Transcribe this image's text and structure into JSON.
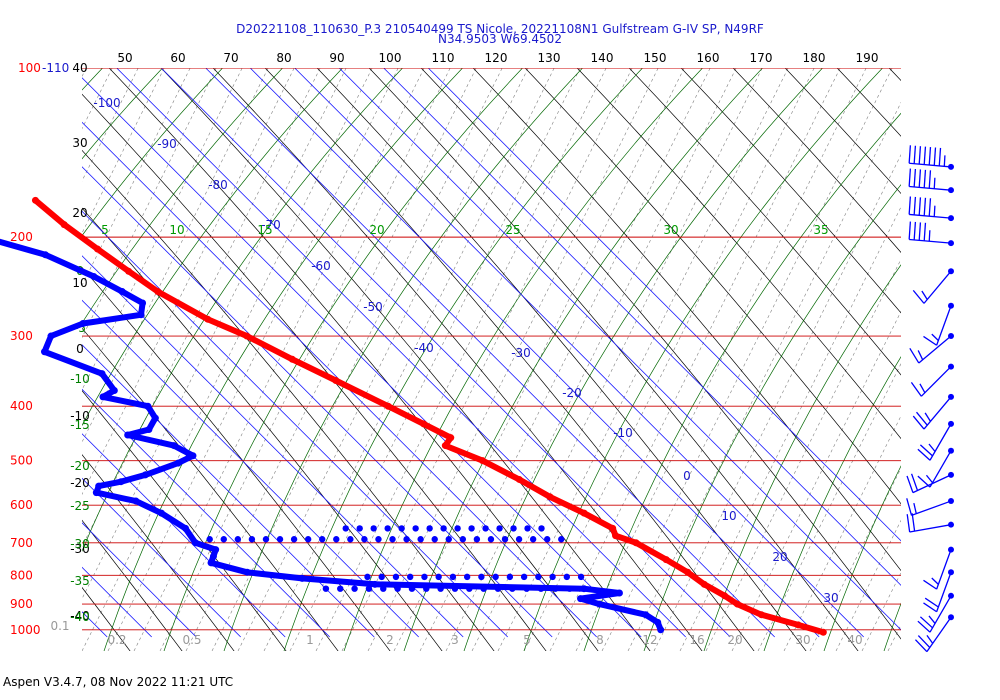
{
  "header": {
    "line1": "D20221108_110630_P.3 210540499 TS Nicole, 20221108N1 Gulfstream G-IV SP, N49RF",
    "line2": "N34.9503 W69.4502"
  },
  "footer": {
    "text": "Aspen V3.4.7, 08 Nov 2022  11:21 UTC"
  },
  "colors": {
    "temperature": "#ff0000",
    "dewpoint": "#0000ff",
    "isobar": "#cc0000",
    "isotherm_label": "#0000cc",
    "dry_adiabat": "#000000",
    "moist_adiabat": "#006600",
    "mixing_ratio": "#808080",
    "theta_label": "#006600"
  },
  "chart_data": {
    "type": "skew-t log-p",
    "title": "",
    "pressure_levels_hPa": [
      "100-110",
      "200",
      "300",
      "400",
      "500",
      "600",
      "700",
      "800",
      "900",
      "1000"
    ],
    "pressure_top_label_extra": "-110",
    "isotherm_labels_C": [
      "-100",
      "-90",
      "-80",
      "-70",
      "-60",
      "-50",
      "-40",
      "-30",
      "-20",
      "-10",
      "0",
      "10",
      "20",
      "30"
    ],
    "top_axis_labels": [
      "50",
      "60",
      "70",
      "80",
      "90",
      "100",
      "110",
      "120",
      "130",
      "140",
      "150",
      "160",
      "170",
      "180",
      "190"
    ],
    "left_black_labels": [
      "40",
      "30",
      "20",
      "10",
      "0",
      "-10",
      "-20",
      "-30",
      "-40"
    ],
    "left_green_labels": [
      "0",
      "-5",
      "-10",
      "-15",
      "-20",
      "-25",
      "-30",
      "-35",
      "-40"
    ],
    "theta_labels_row": [
      "5",
      "10",
      "15",
      "20",
      "25",
      "30",
      "35"
    ],
    "mixing_ratio_labels": [
      "0.1",
      "0.2",
      "0.5",
      "1",
      "2",
      "3",
      "5",
      "8",
      "12",
      "16",
      "20",
      "30",
      "40"
    ],
    "temperature_profile": [
      {
        "p": 172,
        "t": -58
      },
      {
        "p": 190,
        "t": -57
      },
      {
        "p": 210,
        "t": -55
      },
      {
        "p": 230,
        "t": -53
      },
      {
        "p": 250,
        "t": -51
      },
      {
        "p": 280,
        "t": -46
      },
      {
        "p": 300,
        "t": -41
      },
      {
        "p": 330,
        "t": -36
      },
      {
        "p": 360,
        "t": -31
      },
      {
        "p": 400,
        "t": -25
      },
      {
        "p": 430,
        "t": -21
      },
      {
        "p": 455,
        "t": -18
      },
      {
        "p": 470,
        "t": -21
      },
      {
        "p": 500,
        "t": -16
      },
      {
        "p": 540,
        "t": -12
      },
      {
        "p": 580,
        "t": -9
      },
      {
        "p": 620,
        "t": -5
      },
      {
        "p": 660,
        "t": -2
      },
      {
        "p": 680,
        "t": -3
      },
      {
        "p": 700,
        "t": 0
      },
      {
        "p": 750,
        "t": 3
      },
      {
        "p": 790,
        "t": 5
      },
      {
        "p": 830,
        "t": 6
      },
      {
        "p": 870,
        "t": 8
      },
      {
        "p": 900,
        "t": 9
      },
      {
        "p": 940,
        "t": 12
      },
      {
        "p": 980,
        "t": 18
      },
      {
        "p": 1010,
        "t": 22
      }
    ],
    "dewpoint_profile": [
      {
        "p": 200,
        "t": -78
      },
      {
        "p": 215,
        "t": -68
      },
      {
        "p": 235,
        "t": -62
      },
      {
        "p": 250,
        "t": -59
      },
      {
        "p": 262,
        "t": -57
      },
      {
        "p": 275,
        "t": -60
      },
      {
        "p": 285,
        "t": -75
      },
      {
        "p": 300,
        "t": -85
      },
      {
        "p": 320,
        "t": -90
      },
      {
        "p": 350,
        "t": -82
      },
      {
        "p": 375,
        "t": -83
      },
      {
        "p": 385,
        "t": -87
      },
      {
        "p": 400,
        "t": -79
      },
      {
        "p": 420,
        "t": -80
      },
      {
        "p": 440,
        "t": -84
      },
      {
        "p": 450,
        "t": -90
      },
      {
        "p": 470,
        "t": -82
      },
      {
        "p": 490,
        "t": -80
      },
      {
        "p": 505,
        "t": -85
      },
      {
        "p": 530,
        "t": -95
      },
      {
        "p": 545,
        "t": -102
      },
      {
        "p": 555,
        "t": -108
      },
      {
        "p": 570,
        "t": -110
      },
      {
        "p": 590,
        "t": -103
      },
      {
        "p": 620,
        "t": -100
      },
      {
        "p": 660,
        "t": -98
      },
      {
        "p": 700,
        "t": -99
      },
      {
        "p": 720,
        "t": -96
      },
      {
        "p": 740,
        "t": -98
      },
      {
        "p": 760,
        "t": -100
      },
      {
        "p": 790,
        "t": -94
      },
      {
        "p": 810,
        "t": -83
      },
      {
        "p": 830,
        "t": -68
      },
      {
        "p": 845,
        "t": -22
      },
      {
        "p": 860,
        "t": -15
      },
      {
        "p": 880,
        "t": -25
      },
      {
        "p": 900,
        "t": -22
      },
      {
        "p": 940,
        "t": -14
      },
      {
        "p": 970,
        "t": -13
      },
      {
        "p": 1000,
        "t": -14
      }
    ],
    "sparse_dewpoint_bands": [
      {
        "p": 660,
        "t_from": -62,
        "t_to": -18
      },
      {
        "p": 690,
        "t_from": -95,
        "t_to": -16
      },
      {
        "p": 805,
        "t_from": -68,
        "t_to": -20
      },
      {
        "p": 845,
        "t_from": -80,
        "t_to": -22
      }
    ],
    "isolated_temperature_point": {
      "p": 130,
      "t": -62
    },
    "wind_barbs": [
      {
        "p": 150,
        "dir": 275,
        "speed": 75
      },
      {
        "p": 165,
        "dir": 275,
        "speed": 55
      },
      {
        "p": 185,
        "dir": 275,
        "speed": 55
      },
      {
        "p": 205,
        "dir": 275,
        "speed": 45
      },
      {
        "p": 230,
        "dir": 220,
        "speed": 15
      },
      {
        "p": 265,
        "dir": 200,
        "speed": 15
      },
      {
        "p": 300,
        "dir": 230,
        "speed": 15
      },
      {
        "p": 340,
        "dir": 225,
        "speed": 15
      },
      {
        "p": 385,
        "dir": 220,
        "speed": 25
      },
      {
        "p": 430,
        "dir": 210,
        "speed": 25
      },
      {
        "p": 480,
        "dir": 210,
        "speed": 15
      },
      {
        "p": 530,
        "dir": 245,
        "speed": 20
      },
      {
        "p": 590,
        "dir": 250,
        "speed": 15
      },
      {
        "p": 650,
        "dir": 260,
        "speed": 20
      },
      {
        "p": 720,
        "dir": 200,
        "speed": 15
      },
      {
        "p": 790,
        "dir": 200,
        "speed": 20
      },
      {
        "p": 870,
        "dir": 210,
        "speed": 25
      },
      {
        "p": 950,
        "dir": 215,
        "speed": 25
      }
    ]
  }
}
